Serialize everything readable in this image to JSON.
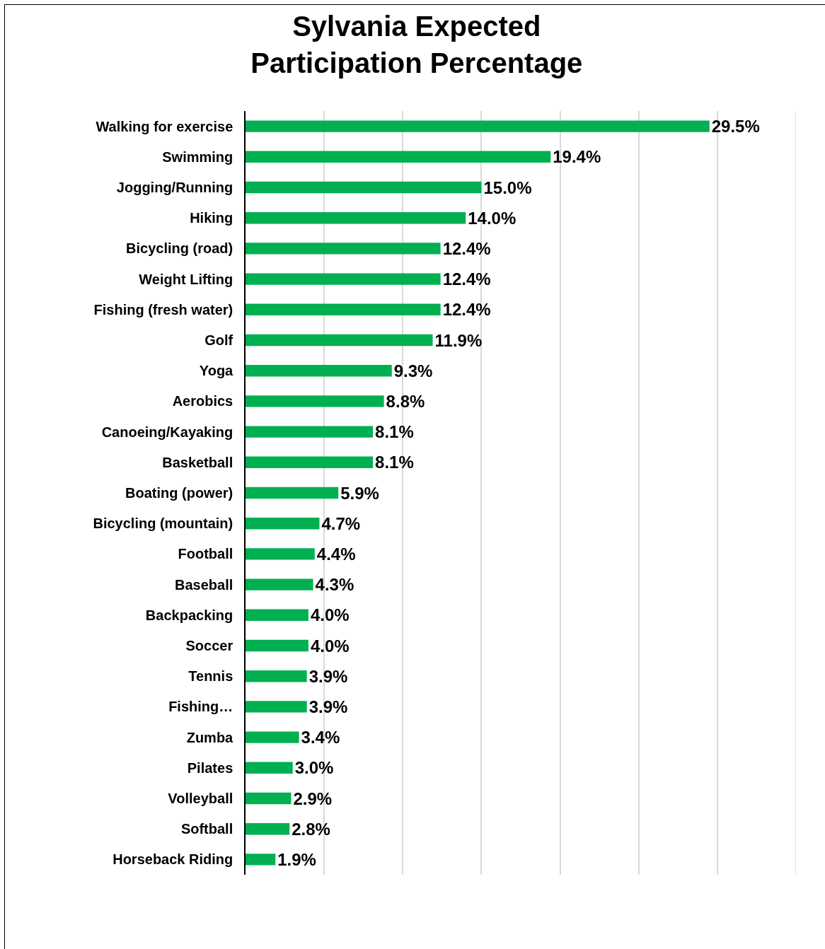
{
  "chart_data": {
    "type": "bar",
    "orientation": "horizontal",
    "title": "Sylvania Expected\nParticipation Percentage",
    "categories": [
      "Walking for exercise",
      "Swimming",
      "Jogging/Running",
      "Hiking",
      "Bicycling (road)",
      "Weight Lifting",
      "Fishing (fresh water)",
      "Golf",
      "Yoga",
      "Aerobics",
      "Canoeing/Kayaking",
      "Basketball",
      "Boating (power)",
      "Bicycling (mountain)",
      "Football",
      "Baseball",
      "Backpacking",
      "Soccer",
      "Tennis",
      "Fishing…",
      "Zumba",
      "Pilates",
      "Volleyball",
      "Softball",
      "Horseback Riding"
    ],
    "values": [
      29.5,
      19.4,
      15.0,
      14.0,
      12.4,
      12.4,
      12.4,
      11.9,
      9.3,
      8.8,
      8.1,
      8.1,
      5.9,
      4.7,
      4.4,
      4.3,
      4.0,
      4.0,
      3.9,
      3.9,
      3.4,
      3.0,
      2.9,
      2.8,
      1.9
    ],
    "value_labels": [
      "29.5%",
      "19.4%",
      "15.0%",
      "14.0%",
      "12.4%",
      "12.4%",
      "12.4%",
      "11.9%",
      "9.3%",
      "8.8%",
      "8.1%",
      "8.1%",
      "5.9%",
      "4.7%",
      "4.4%",
      "4.3%",
      "4.0%",
      "4.0%",
      "3.9%",
      "3.9%",
      "3.4%",
      "3.0%",
      "2.9%",
      "2.8%",
      "1.9%"
    ],
    "color": "#00b050",
    "xlim": [
      0,
      35
    ],
    "xticks": [
      {
        "value": 0,
        "label": null
      },
      {
        "value": 5,
        "label": null
      },
      {
        "value": 10,
        "label": null
      },
      {
        "value": 15,
        "label": null
      },
      {
        "value": 20,
        "label": null
      },
      {
        "value": 25,
        "label": null
      },
      {
        "value": 30,
        "label": null
      },
      {
        "value": 35,
        "label": null
      }
    ],
    "grid": "x",
    "tick_labels": "y"
  }
}
